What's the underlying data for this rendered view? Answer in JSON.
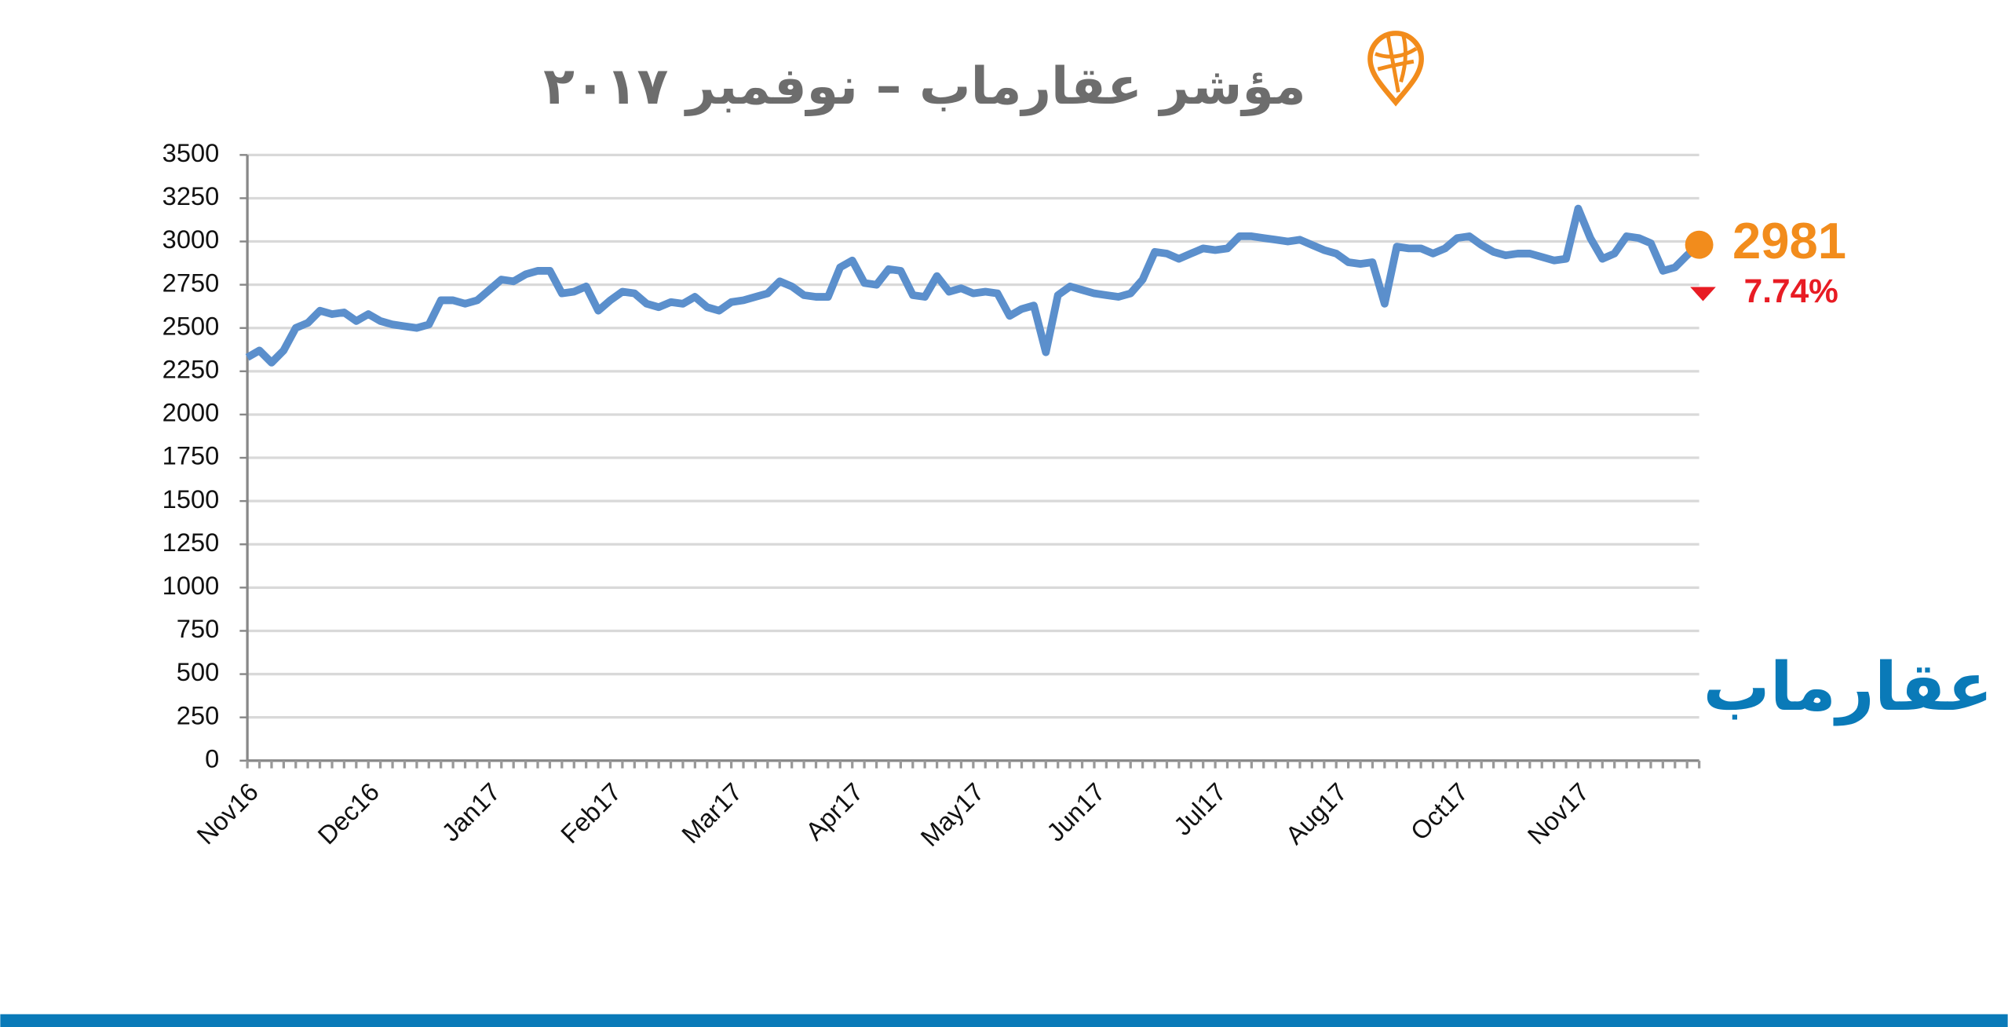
{
  "chart_data": {
    "type": "line",
    "title": "مؤشر عقارماب – نوفمبر ٢٠١٧",
    "brand": "عقارماب",
    "annotations": [
      "2981",
      "7.74%"
    ],
    "color": "#5b8fcc",
    "annotation_colors": [
      "#f28c1c",
      "#e81c24"
    ],
    "categories": [
      "Nov16",
      null,
      null,
      null,
      null,
      null,
      null,
      null,
      null,
      null,
      "Dec16",
      null,
      null,
      null,
      null,
      null,
      null,
      null,
      null,
      null,
      "Jan17",
      null,
      null,
      null,
      null,
      null,
      null,
      null,
      null,
      null,
      "Feb17",
      null,
      null,
      null,
      null,
      null,
      null,
      null,
      null,
      null,
      "Mar17",
      null,
      null,
      null,
      null,
      null,
      null,
      null,
      null,
      null,
      "Apr17",
      null,
      null,
      null,
      null,
      null,
      null,
      null,
      null,
      null,
      "May17",
      null,
      null,
      null,
      null,
      null,
      null,
      null,
      null,
      null,
      "Jun17",
      null,
      null,
      null,
      null,
      null,
      null,
      null,
      null,
      null,
      "Jul17",
      null,
      null,
      null,
      null,
      null,
      null,
      null,
      null,
      null,
      "Aug17",
      null,
      null,
      null,
      null,
      null,
      null,
      null,
      null,
      null,
      "Oct17",
      null,
      null,
      null,
      null,
      null,
      null,
      null,
      null,
      null,
      "Nov17",
      null,
      null,
      null,
      null,
      null,
      null,
      null,
      null,
      null,
      null
    ],
    "values": [
      2330,
      2370,
      2300,
      2370,
      2500,
      2530,
      2600,
      2580,
      2590,
      2540,
      2580,
      2540,
      2520,
      2510,
      2500,
      2520,
      2660,
      2660,
      2640,
      2660,
      2720,
      2780,
      2770,
      2810,
      2830,
      2830,
      2700,
      2710,
      2740,
      2600,
      2660,
      2710,
      2700,
      2640,
      2620,
      2650,
      2640,
      2680,
      2620,
      2600,
      2650,
      2660,
      2680,
      2700,
      2770,
      2740,
      2690,
      2680,
      2680,
      2850,
      2890,
      2760,
      2750,
      2840,
      2830,
      2690,
      2680,
      2800,
      2710,
      2730,
      2700,
      2710,
      2700,
      2570,
      2610,
      2630,
      2360,
      2690,
      2740,
      2720,
      2700,
      2690,
      2680,
      2700,
      2780,
      2940,
      2930,
      2900,
      2930,
      2960,
      2950,
      2960,
      3030,
      3030,
      3020,
      3010,
      3000,
      3010,
      2980,
      2950,
      2930,
      2880,
      2870,
      2880,
      2640,
      2970,
      2960,
      2960,
      2930,
      2960,
      3020,
      3030,
      2980,
      2940,
      2920,
      2930,
      2930,
      2910,
      2890,
      2900,
      3190,
      3020,
      2900,
      2930,
      3030,
      3020,
      2990,
      2830,
      2850,
      2920,
      2981
    ],
    "ylim": [
      0,
      3500
    ],
    "yticks": [
      0,
      250,
      500,
      750,
      1000,
      1250,
      1500,
      1750,
      2000,
      2250,
      2500,
      2750,
      3000,
      3250,
      3500
    ],
    "grid": true
  }
}
